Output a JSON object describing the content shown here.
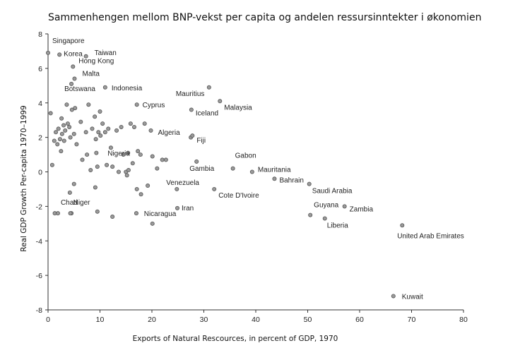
{
  "chart_data": {
    "type": "scatter",
    "title": "Sammenhengen mellom BNP-vekst per capita og andelen ressursinntekter i økonomien",
    "xlabel": "Exports of Natural Rescources, in percent of GDP, 1970",
    "ylabel": "Real GDP Growth Per-capita 1970–1999",
    "xlim": [
      0,
      80
    ],
    "ylim": [
      -8,
      8
    ],
    "xticks": [
      0,
      10,
      20,
      30,
      40,
      50,
      60,
      70,
      80
    ],
    "yticks": [
      -8,
      -6,
      -4,
      -2,
      0,
      2,
      4,
      6,
      8
    ],
    "grid": false,
    "labeled_points": [
      {
        "label": "Singapore",
        "x": 0,
        "y": 6.9
      },
      {
        "label": "Korea",
        "x": 2.2,
        "y": 6.8
      },
      {
        "label": "Taiwan",
        "x": 7.3,
        "y": 6.7
      },
      {
        "label": "Hong Kong",
        "x": 4.8,
        "y": 6.1
      },
      {
        "label": "Malta",
        "x": 5.1,
        "y": 5.4
      },
      {
        "label": "Botswana",
        "x": 4.5,
        "y": 5.1
      },
      {
        "label": "Indonesia",
        "x": 11.0,
        "y": 4.9
      },
      {
        "label": "Mauritius",
        "x": 31.0,
        "y": 4.9
      },
      {
        "label": "Cyprus",
        "x": 17.1,
        "y": 3.9
      },
      {
        "label": "Malaysia",
        "x": 33.1,
        "y": 4.1
      },
      {
        "label": "Iceland",
        "x": 27.6,
        "y": 3.6
      },
      {
        "label": "Algeria",
        "x": 19.8,
        "y": 2.4
      },
      {
        "label": "Fiji",
        "x": 27.8,
        "y": 2.1
      },
      {
        "label": "Nigeria",
        "x": 15.4,
        "y": 1.1
      },
      {
        "label": "Gabon",
        "x": 35.6,
        "y": 0.2
      },
      {
        "label": "Gambia",
        "x": 28.6,
        "y": 0.6
      },
      {
        "label": "Mauritania",
        "x": 39.3,
        "y": 0.0
      },
      {
        "label": "Bahrain",
        "x": 43.6,
        "y": -0.4
      },
      {
        "label": "Saudi Arabia",
        "x": 50.3,
        "y": -0.7
      },
      {
        "label": "Venezuela",
        "x": 24.8,
        "y": -1.0
      },
      {
        "label": "Cote D'Ivoire",
        "x": 32.0,
        "y": -1.0
      },
      {
        "label": "Chad",
        "x": 1.9,
        "y": -2.4
      },
      {
        "label": "Niger",
        "x": 4.3,
        "y": -2.4
      },
      {
        "label": "Iran",
        "x": 24.9,
        "y": -2.1
      },
      {
        "label": "Nicaragua",
        "x": 20.1,
        "y": -3.0
      },
      {
        "label": "Guyana",
        "x": 50.5,
        "y": -2.5
      },
      {
        "label": "Zambia",
        "x": 57.1,
        "y": -2.0
      },
      {
        "label": "Liberia",
        "x": 53.3,
        "y": -2.7
      },
      {
        "label": "United Arab Emirates",
        "x": 68.2,
        "y": -3.1
      },
      {
        "label": "Kuwait",
        "x": 66.5,
        "y": -7.2
      }
    ],
    "unlabeled_points": [
      {
        "x": 0.5,
        "y": 3.4
      },
      {
        "x": 0.8,
        "y": 0.4
      },
      {
        "x": 1.2,
        "y": 1.8
      },
      {
        "x": 1.5,
        "y": 2.3
      },
      {
        "x": 1.8,
        "y": 1.6
      },
      {
        "x": 2.0,
        "y": 2.5
      },
      {
        "x": 2.3,
        "y": 1.9
      },
      {
        "x": 2.5,
        "y": 1.2
      },
      {
        "x": 2.7,
        "y": 2.2
      },
      {
        "x": 3.0,
        "y": 2.7
      },
      {
        "x": 3.1,
        "y": 1.8
      },
      {
        "x": 3.3,
        "y": 2.4
      },
      {
        "x": 3.6,
        "y": 3.9
      },
      {
        "x": 3.8,
        "y": 2.8
      },
      {
        "x": 4.1,
        "y": 2.6
      },
      {
        "x": 4.3,
        "y": 2.0
      },
      {
        "x": 4.6,
        "y": 3.6
      },
      {
        "x": 5.0,
        "y": 2.2
      },
      {
        "x": 5.2,
        "y": 3.7
      },
      {
        "x": 5.5,
        "y": 1.6
      },
      {
        "x": 4.2,
        "y": -1.2
      },
      {
        "x": 5.0,
        "y": -0.7
      },
      {
        "x": 6.3,
        "y": 2.9
      },
      {
        "x": 6.6,
        "y": 0.7
      },
      {
        "x": 7.3,
        "y": 2.3
      },
      {
        "x": 7.5,
        "y": 1.0
      },
      {
        "x": 7.8,
        "y": 3.9
      },
      {
        "x": 8.2,
        "y": 0.1
      },
      {
        "x": 8.5,
        "y": 2.5
      },
      {
        "x": 9.0,
        "y": 3.2
      },
      {
        "x": 9.2,
        "y": 1.9
      },
      {
        "x": 9.3,
        "y": 1.1
      },
      {
        "x": 9.5,
        "y": 0.3
      },
      {
        "x": 9.7,
        "y": 2.3
      },
      {
        "x": 10.0,
        "y": 3.5
      },
      {
        "x": 10.1,
        "y": 2.1
      },
      {
        "x": 10.5,
        "y": 2.8
      },
      {
        "x": 11.0,
        "y": 2.3
      },
      {
        "x": 11.3,
        "y": 0.4
      },
      {
        "x": 11.6,
        "y": 2.5
      },
      {
        "x": 12.1,
        "y": 1.4
      },
      {
        "x": 12.4,
        "y": 0.3
      },
      {
        "x": 13.2,
        "y": 2.4
      },
      {
        "x": 13.6,
        "y": 0.0
      },
      {
        "x": 14.1,
        "y": 2.6
      },
      {
        "x": 14.5,
        "y": 1.0
      },
      {
        "x": 15.0,
        "y": 0.0
      },
      {
        "x": 15.2,
        "y": -0.2
      },
      {
        "x": 15.5,
        "y": 0.1
      },
      {
        "x": 15.9,
        "y": 2.8
      },
      {
        "x": 16.3,
        "y": 0.5
      },
      {
        "x": 16.6,
        "y": 2.6
      },
      {
        "x": 17.1,
        "y": -1.0
      },
      {
        "x": 17.3,
        "y": 1.2
      },
      {
        "x": 17.8,
        "y": 1.0
      },
      {
        "x": 18.6,
        "y": 2.8
      },
      {
        "x": 19.2,
        "y": -0.8
      },
      {
        "x": 20.1,
        "y": 0.9
      },
      {
        "x": 21.0,
        "y": 0.2
      },
      {
        "x": 22.0,
        "y": 0.7
      },
      {
        "x": 22.7,
        "y": 0.7
      },
      {
        "x": 2.6,
        "y": 3.1
      },
      {
        "x": 1.3,
        "y": -2.4
      },
      {
        "x": 4.5,
        "y": -2.4
      },
      {
        "x": 9.1,
        "y": -0.9
      },
      {
        "x": 9.5,
        "y": -2.3
      },
      {
        "x": 12.4,
        "y": -2.6
      },
      {
        "x": 17.0,
        "y": -2.4
      },
      {
        "x": 17.9,
        "y": -1.3
      },
      {
        "x": 27.5,
        "y": 2.0
      }
    ]
  }
}
